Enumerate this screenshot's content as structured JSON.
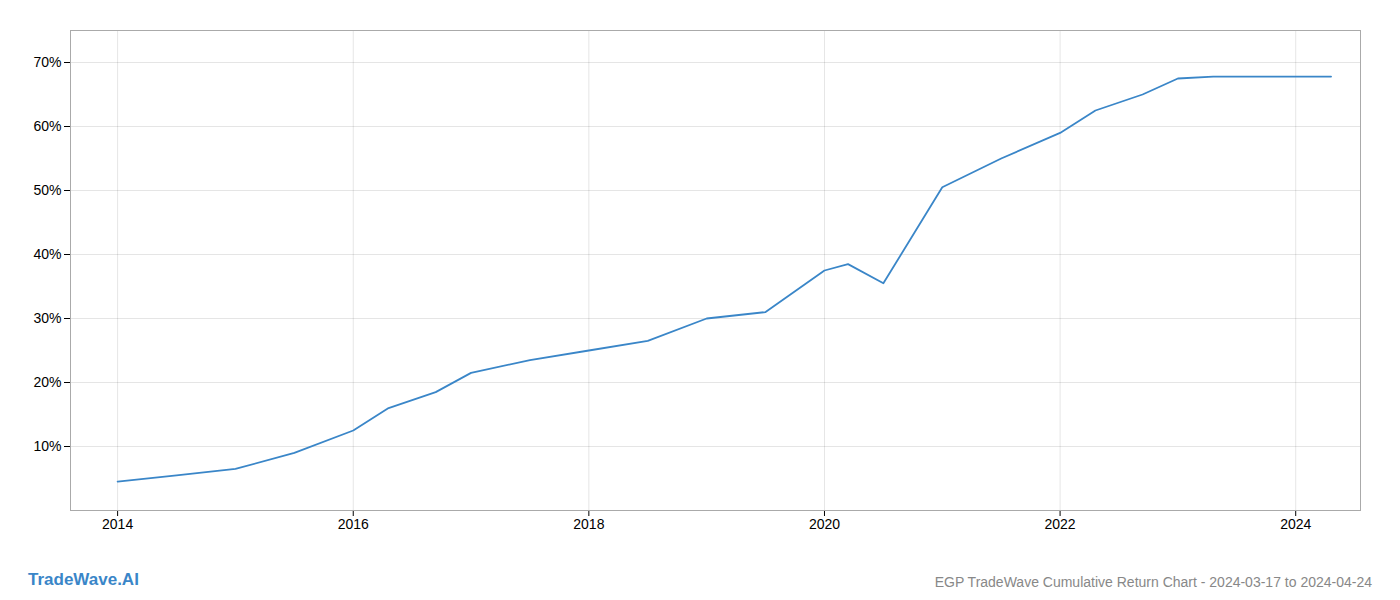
{
  "chart_data": {
    "type": "line",
    "title": "EGP TradeWave Cumulative Return Chart - 2024-03-17 to 2024-04-24",
    "annotations": [
      "TradeWave.AI"
    ],
    "x": [
      2014.0,
      2014.5,
      2015.0,
      2015.5,
      2016.0,
      2016.3,
      2016.7,
      2017.0,
      2017.5,
      2018.0,
      2018.5,
      2019.0,
      2019.5,
      2020.0,
      2020.2,
      2020.5,
      2021.0,
      2021.5,
      2022.0,
      2022.3,
      2022.7,
      2023.0,
      2023.3,
      2023.6,
      2024.0,
      2024.3
    ],
    "values": [
      4.5,
      5.5,
      6.5,
      9.0,
      12.5,
      16.0,
      18.5,
      21.5,
      23.5,
      25.0,
      26.5,
      30.0,
      31.0,
      37.5,
      38.5,
      35.5,
      50.5,
      55.0,
      59.0,
      62.5,
      65.0,
      67.5,
      67.8,
      67.8,
      67.8,
      67.8
    ],
    "color": "#3a86c8",
    "xlim": [
      2013.6,
      2024.55
    ],
    "xticks": [
      2014,
      2016,
      2018,
      2020,
      2022,
      2024
    ],
    "ylim": [
      0,
      75
    ],
    "yticks": [
      {
        "value": 10,
        "label": "10%"
      },
      {
        "value": 20,
        "label": "20%"
      },
      {
        "value": 30,
        "label": "30%"
      },
      {
        "value": 40,
        "label": "40%"
      },
      {
        "value": 50,
        "label": "50%"
      },
      {
        "value": 60,
        "label": "60%"
      },
      {
        "value": 70,
        "label": "70%"
      }
    ],
    "grid": true
  }
}
